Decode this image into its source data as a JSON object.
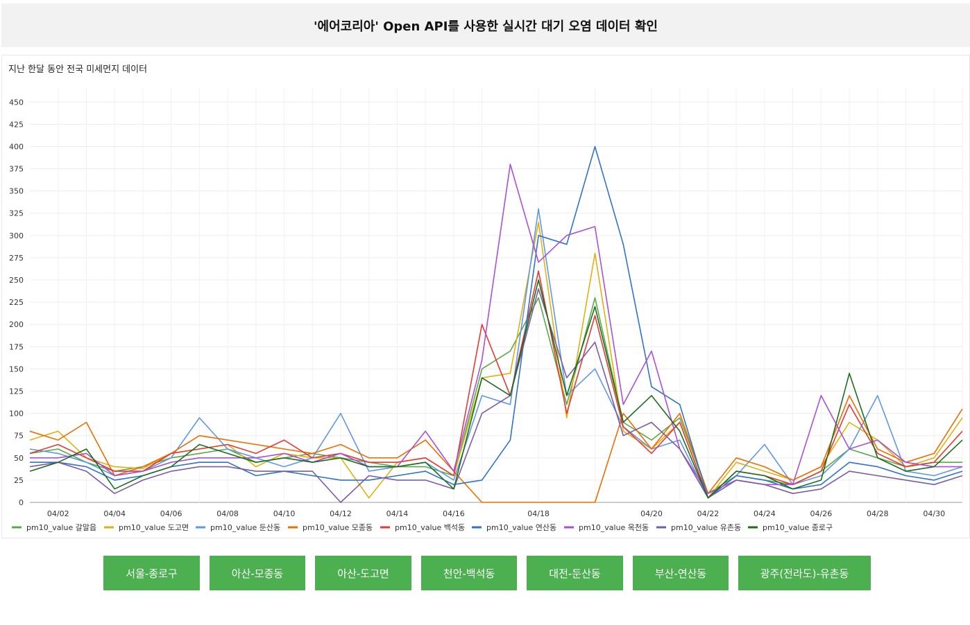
{
  "header": {
    "title": "'에어코리아' Open API를 사용한 실시간 대기 오염 데이터 확인"
  },
  "buttons": [
    "서울-종로구",
    "아산-모종동",
    "아산-도고면",
    "천안-백석동",
    "대전-둔산동",
    "부산-연산동",
    "광주(전라도)-유촌동"
  ],
  "chart_data": {
    "type": "line",
    "title": "지난 한달 동안 전국 미세먼지 데이터",
    "xlabel": "",
    "ylabel": "",
    "x_range": [
      "04/01",
      "05/01"
    ],
    "x_ticks": [
      "04/02",
      "04/04",
      "04/06",
      "04/08",
      "04/10",
      "04/12",
      "04/14",
      "04/16",
      "04/18",
      "04/20",
      "04/22",
      "04/24",
      "04/26",
      "04/28",
      "04/30"
    ],
    "y_ticks": [
      0,
      25,
      50,
      75,
      100,
      125,
      150,
      175,
      200,
      225,
      250,
      275,
      300,
      325,
      350,
      375,
      400,
      425,
      450
    ],
    "ylim": [
      0,
      465
    ],
    "grid": true,
    "legend_position": "bottom",
    "x": [
      "04/01",
      "04/02",
      "04/03",
      "04/04",
      "04/05",
      "04/06",
      "04/07",
      "04/08",
      "04/09",
      "04/10",
      "04/11",
      "04/12",
      "04/13",
      "04/14",
      "04/15",
      "04/16",
      "04/17",
      "04/17 12h",
      "04/18",
      "04/18 12h",
      "04/19",
      "04/19 12h",
      "04/20",
      "04/21",
      "04/22",
      "04/23",
      "04/24",
      "04/25",
      "04/26",
      "04/27",
      "04/28",
      "04/29",
      "04/30",
      "05/01"
    ],
    "series": [
      {
        "name": "pm10_value 갈말읍",
        "color": "#5aa84a",
        "values": [
          55,
          60,
          45,
          35,
          40,
          50,
          55,
          60,
          45,
          50,
          55,
          50,
          45,
          40,
          40,
          30,
          150,
          170,
          230,
          110,
          230,
          90,
          70,
          95,
          10,
          30,
          25,
          20,
          35,
          60,
          50,
          40,
          45,
          45
        ]
      },
      {
        "name": "pm10_value 도고면",
        "color": "#e0b10e",
        "values": [
          70,
          80,
          50,
          40,
          38,
          55,
          60,
          65,
          40,
          55,
          50,
          50,
          5,
          45,
          50,
          30,
          140,
          145,
          315,
          95,
          280,
          80,
          60,
          90,
          5,
          45,
          35,
          25,
          40,
          90,
          70,
          40,
          50,
          95
        ]
      },
      {
        "name": "pm10_value 둔산동",
        "color": "#5e98e6",
        "values": [
          60,
          55,
          45,
          30,
          35,
          50,
          95,
          60,
          50,
          40,
          50,
          100,
          35,
          40,
          45,
          25,
          120,
          110,
          330,
          120,
          150,
          85,
          60,
          70,
          5,
          30,
          65,
          20,
          30,
          60,
          120,
          35,
          30,
          40
        ]
      },
      {
        "name": "pm10_value 모종동",
        "color": "#ef6c00",
        "values": [
          80,
          70,
          90,
          30,
          40,
          55,
          75,
          70,
          65,
          60,
          55,
          65,
          50,
          50,
          70,
          35,
          0,
          0,
          0,
          0,
          0,
          100,
          60,
          100,
          10,
          50,
          40,
          25,
          40,
          120,
          60,
          45,
          55,
          105
        ]
      },
      {
        "name": "pm10_value 백석동",
        "color": "#e53935",
        "values": [
          55,
          65,
          50,
          35,
          35,
          55,
          60,
          65,
          55,
          70,
          50,
          55,
          45,
          45,
          50,
          30,
          200,
          120,
          260,
          100,
          210,
          85,
          55,
          90,
          5,
          35,
          30,
          20,
          35,
          110,
          55,
          40,
          45,
          80
        ]
      },
      {
        "name": "pm10_value 연산동",
        "color": "#2f72c9",
        "values": [
          45,
          45,
          40,
          25,
          30,
          40,
          45,
          45,
          30,
          35,
          30,
          25,
          25,
          30,
          35,
          20,
          25,
          70,
          300,
          290,
          400,
          290,
          130,
          110,
          5,
          30,
          25,
          15,
          20,
          45,
          40,
          30,
          25,
          35
        ]
      },
      {
        "name": "pm10_value 옥천동",
        "color": "#aa4fd6",
        "values": [
          50,
          50,
          55,
          30,
          35,
          45,
          50,
          50,
          50,
          55,
          45,
          55,
          40,
          40,
          80,
          35,
          160,
          380,
          270,
          300,
          310,
          110,
          170,
          60,
          10,
          25,
          20,
          20,
          120,
          60,
          70,
          45,
          40,
          40
        ]
      },
      {
        "name": "pm10_value 유촌동",
        "color": "#7b5ba6",
        "values": [
          40,
          45,
          35,
          10,
          25,
          35,
          40,
          40,
          35,
          35,
          35,
          0,
          30,
          25,
          25,
          15,
          100,
          120,
          240,
          140,
          180,
          75,
          90,
          60,
          5,
          25,
          20,
          10,
          15,
          35,
          30,
          25,
          20,
          30
        ]
      },
      {
        "name": "pm10_value 종로구",
        "color": "#1b6e1b",
        "values": [
          35,
          45,
          60,
          15,
          30,
          40,
          65,
          55,
          45,
          50,
          45,
          50,
          40,
          40,
          45,
          15,
          140,
          120,
          250,
          120,
          220,
          90,
          120,
          80,
          5,
          35,
          30,
          15,
          25,
          145,
          50,
          35,
          40,
          70
        ]
      }
    ]
  }
}
